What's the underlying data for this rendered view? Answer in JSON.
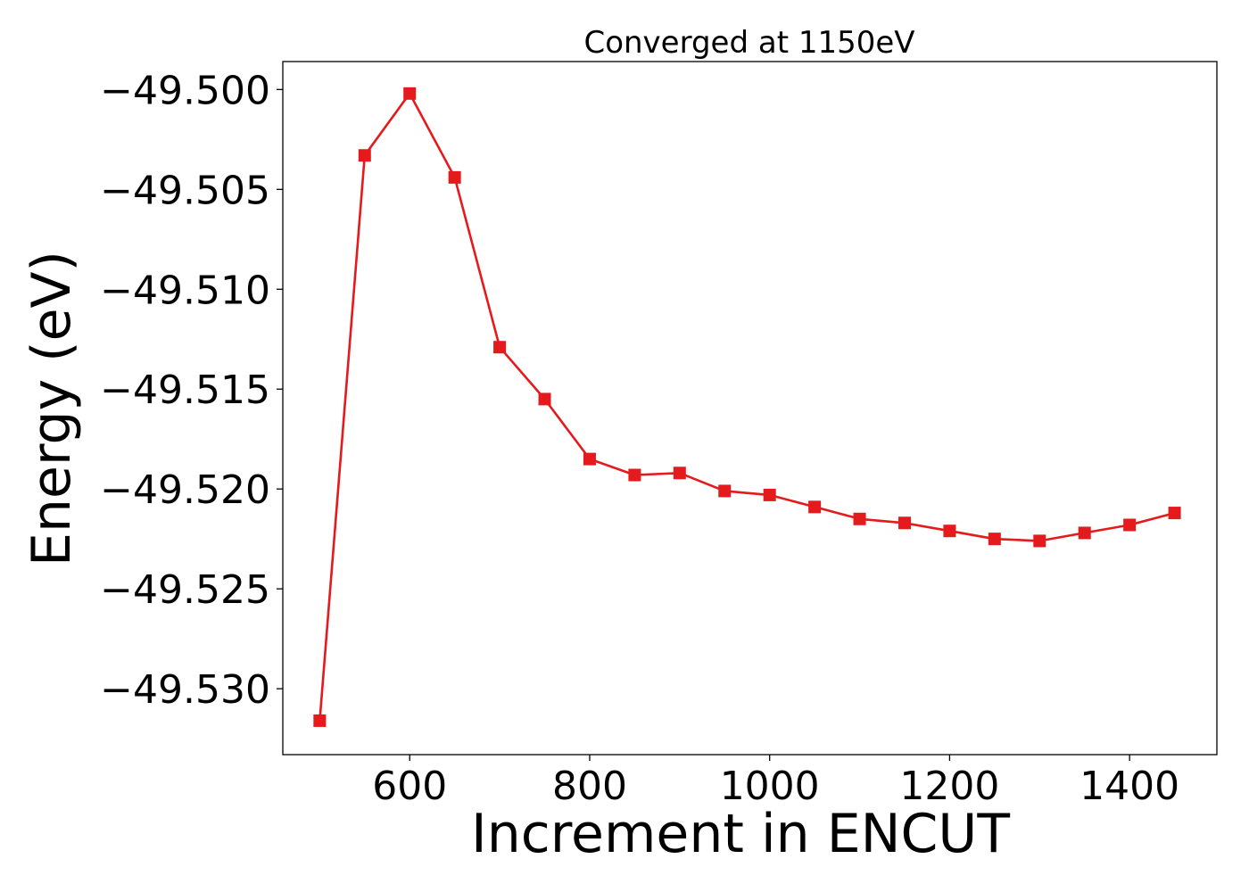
{
  "chart_data": {
    "type": "line",
    "title": "Converged at 1150eV",
    "xlabel": "Increment in ENCUT",
    "ylabel": "Energy (eV)",
    "xlim": [
      459,
      1497
    ],
    "ylim": [
      -49.5333,
      -49.4986
    ],
    "xticks": [
      600,
      800,
      1000,
      1200,
      1400
    ],
    "xtick_labels": [
      "600",
      "800",
      "1000",
      "1200",
      "1400"
    ],
    "yticks": [
      -49.5,
      -49.505,
      -49.51,
      -49.515,
      -49.52,
      -49.525,
      -49.53
    ],
    "ytick_labels": [
      "−49.500",
      "−49.505",
      "−49.510",
      "−49.515",
      "−49.520",
      "−49.525",
      "−49.530"
    ],
    "grid": false,
    "legend": "none",
    "marker": "square",
    "color": "#e41a1c",
    "series": [
      {
        "x": [
          500,
          550,
          600,
          650,
          700,
          750,
          800,
          850,
          900,
          950,
          1000,
          1050,
          1100,
          1150,
          1200,
          1250,
          1300,
          1350,
          1400,
          1450
        ],
        "values": [
          -49.5316,
          -49.5033,
          -49.5002,
          -49.5044,
          -49.5129,
          -49.5155,
          -49.5185,
          -49.5193,
          -49.5192,
          -49.5201,
          -49.5203,
          -49.5209,
          -49.5215,
          -49.5217,
          -49.5221,
          -49.5225,
          -49.5226,
          -49.5222,
          -49.5218,
          -49.5212
        ]
      }
    ]
  }
}
